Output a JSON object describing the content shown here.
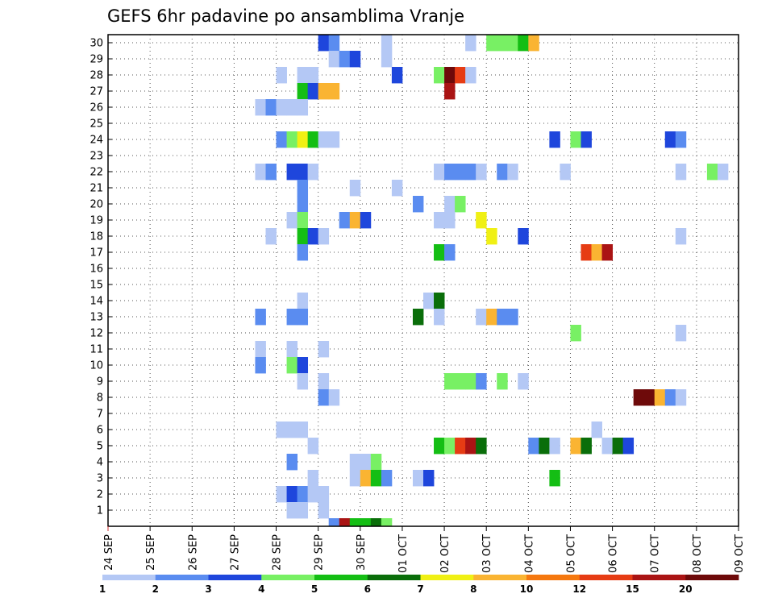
{
  "chart_data": {
    "type": "heatmap",
    "title": "GEFS 6hr padavine po ansamblima Vranje",
    "xlabel": "",
    "ylabel": "",
    "x_tick_labels": [
      "24 SEP",
      "25 SEP",
      "26 SEP",
      "27 SEP",
      "28 SEP",
      "29 SEP",
      "30 SEP",
      "01 OCT",
      "02 OCT",
      "03 OCT",
      "04 OCT",
      "05 OCT",
      "06 OCT",
      "07 OCT",
      "08 OCT",
      "09 OCT"
    ],
    "y_tick_labels": [
      "1",
      "2",
      "3",
      "4",
      "5",
      "6",
      "7",
      "8",
      "9",
      "10",
      "11",
      "12",
      "13",
      "14",
      "15",
      "16",
      "17",
      "18",
      "19",
      "20",
      "21",
      "22",
      "23",
      "24",
      "25",
      "26",
      "27",
      "28",
      "29",
      "30"
    ],
    "xlim_steps": [
      0,
      60
    ],
    "ylim": [
      0,
      30
    ],
    "step_hours": 6,
    "grid": true,
    "legend": {
      "placement": "bottom",
      "labels": [
        "1",
        "2",
        "3",
        "4",
        "5",
        "6",
        "7",
        "8",
        "10",
        "12",
        "15",
        "20"
      ],
      "colors": [
        "#b4c8f5",
        "#5a8cf0",
        "#1e46dc",
        "#78f064",
        "#14be14",
        "#0a6e0a",
        "#f0f014",
        "#fab432",
        "#f5780f",
        "#e63c14",
        "#aa1414",
        "#6e0a0a"
      ]
    },
    "cells": [
      {
        "m": 30,
        "s": [
          [
            20,
            3
          ],
          [
            21,
            2
          ],
          [
            26,
            1
          ],
          [
            34,
            1
          ],
          [
            36,
            4
          ],
          [
            37,
            4
          ],
          [
            38,
            4
          ],
          [
            39,
            5
          ],
          [
            40,
            8
          ]
        ]
      },
      {
        "m": 29,
        "s": [
          [
            21,
            1
          ],
          [
            22,
            2
          ],
          [
            23,
            3
          ],
          [
            26,
            1
          ]
        ]
      },
      {
        "m": 28,
        "s": [
          [
            16,
            1
          ],
          [
            18,
            1
          ],
          [
            19,
            1
          ],
          [
            27,
            3
          ],
          [
            31,
            4
          ],
          [
            32,
            20
          ],
          [
            33,
            12
          ],
          [
            34,
            1
          ]
        ]
      },
      {
        "m": 27,
        "s": [
          [
            18,
            5
          ],
          [
            19,
            3
          ],
          [
            20,
            8
          ],
          [
            21,
            8
          ],
          [
            32,
            15
          ]
        ]
      },
      {
        "m": 26,
        "s": [
          [
            14,
            1
          ],
          [
            15,
            2
          ],
          [
            16,
            1
          ],
          [
            17,
            1
          ],
          [
            18,
            1
          ]
        ]
      },
      {
        "m": 24,
        "s": [
          [
            16,
            2
          ],
          [
            17,
            4
          ],
          [
            18,
            7
          ],
          [
            19,
            5
          ],
          [
            20,
            1
          ],
          [
            21,
            1
          ],
          [
            42,
            3
          ],
          [
            44,
            4
          ],
          [
            45,
            3
          ],
          [
            53,
            3
          ],
          [
            54,
            2
          ]
        ]
      },
      {
        "m": 22,
        "s": [
          [
            14,
            1
          ],
          [
            15,
            2
          ],
          [
            17,
            3
          ],
          [
            18,
            3
          ],
          [
            19,
            1
          ],
          [
            31,
            1
          ],
          [
            32,
            2
          ],
          [
            33,
            2
          ],
          [
            34,
            2
          ],
          [
            35,
            1
          ],
          [
            37,
            2
          ],
          [
            38,
            1
          ],
          [
            43,
            1
          ],
          [
            54,
            1
          ],
          [
            57,
            4
          ],
          [
            58,
            1
          ]
        ]
      },
      {
        "m": 21,
        "s": [
          [
            18,
            2
          ],
          [
            23,
            1
          ],
          [
            27,
            1
          ]
        ]
      },
      {
        "m": 20,
        "s": [
          [
            18,
            2
          ],
          [
            29,
            2
          ],
          [
            32,
            1
          ],
          [
            33,
            4
          ]
        ]
      },
      {
        "m": 19,
        "s": [
          [
            17,
            1
          ],
          [
            18,
            4
          ],
          [
            22,
            2
          ],
          [
            23,
            8
          ],
          [
            24,
            3
          ],
          [
            31,
            1
          ],
          [
            32,
            1
          ],
          [
            35,
            7
          ]
        ]
      },
      {
        "m": 18,
        "s": [
          [
            15,
            1
          ],
          [
            18,
            5
          ],
          [
            19,
            3
          ],
          [
            20,
            1
          ],
          [
            36,
            7
          ],
          [
            39,
            3
          ],
          [
            54,
            1
          ]
        ]
      },
      {
        "m": 17,
        "s": [
          [
            18,
            2
          ],
          [
            31,
            5
          ],
          [
            32,
            2
          ],
          [
            45,
            12
          ],
          [
            46,
            8
          ],
          [
            47,
            15
          ]
        ]
      },
      {
        "m": 14,
        "s": [
          [
            18,
            1
          ],
          [
            30,
            1
          ],
          [
            31,
            6
          ]
        ]
      },
      {
        "m": 13,
        "s": [
          [
            14,
            2
          ],
          [
            17,
            2
          ],
          [
            18,
            2
          ],
          [
            29,
            6
          ],
          [
            31,
            1
          ],
          [
            35,
            1
          ],
          [
            36,
            8
          ],
          [
            37,
            2
          ],
          [
            38,
            2
          ]
        ]
      },
      {
        "m": 12,
        "s": [
          [
            44,
            4
          ],
          [
            54,
            1
          ]
        ]
      },
      {
        "m": 11,
        "s": [
          [
            14,
            1
          ],
          [
            17,
            1
          ],
          [
            20,
            1
          ]
        ]
      },
      {
        "m": 10,
        "s": [
          [
            14,
            2
          ],
          [
            17,
            4
          ],
          [
            18,
            3
          ]
        ]
      },
      {
        "m": 9,
        "s": [
          [
            18,
            1
          ],
          [
            20,
            1
          ],
          [
            32,
            4
          ],
          [
            33,
            4
          ],
          [
            34,
            4
          ],
          [
            35,
            2
          ],
          [
            37,
            4
          ],
          [
            39,
            1
          ]
        ]
      },
      {
        "m": 8,
        "s": [
          [
            20,
            2
          ],
          [
            21,
            1
          ],
          [
            50,
            20
          ],
          [
            51,
            20
          ],
          [
            52,
            8
          ],
          [
            53,
            2
          ],
          [
            54,
            1
          ]
        ]
      },
      {
        "m": 6,
        "s": [
          [
            16,
            1
          ],
          [
            17,
            1
          ],
          [
            18,
            1
          ],
          [
            46,
            1
          ]
        ]
      },
      {
        "m": 5,
        "s": [
          [
            19,
            1
          ],
          [
            31,
            5
          ],
          [
            32,
            4
          ],
          [
            33,
            12
          ],
          [
            34,
            15
          ],
          [
            35,
            6
          ],
          [
            40,
            2
          ],
          [
            41,
            6
          ],
          [
            42,
            1
          ],
          [
            44,
            8
          ],
          [
            45,
            6
          ],
          [
            47,
            1
          ],
          [
            48,
            6
          ],
          [
            49,
            3
          ]
        ]
      },
      {
        "m": 4,
        "s": [
          [
            17,
            2
          ],
          [
            23,
            1
          ],
          [
            24,
            1
          ],
          [
            25,
            4
          ]
        ]
      },
      {
        "m": 3,
        "s": [
          [
            19,
            1
          ],
          [
            23,
            1
          ],
          [
            24,
            8
          ],
          [
            25,
            5
          ],
          [
            26,
            2
          ],
          [
            29,
            1
          ],
          [
            30,
            3
          ],
          [
            42,
            5
          ]
        ]
      },
      {
        "m": 2,
        "s": [
          [
            16,
            1
          ],
          [
            17,
            3
          ],
          [
            18,
            2
          ],
          [
            19,
            1
          ],
          [
            20,
            1
          ]
        ]
      },
      {
        "m": 1,
        "s": [
          [
            17,
            1
          ],
          [
            18,
            1
          ],
          [
            20,
            1
          ]
        ]
      },
      {
        "m": 0,
        "s": [
          [
            21,
            2
          ],
          [
            22,
            15
          ],
          [
            23,
            5
          ],
          [
            24,
            5
          ],
          [
            25,
            6
          ],
          [
            26,
            4
          ]
        ]
      }
    ]
  }
}
